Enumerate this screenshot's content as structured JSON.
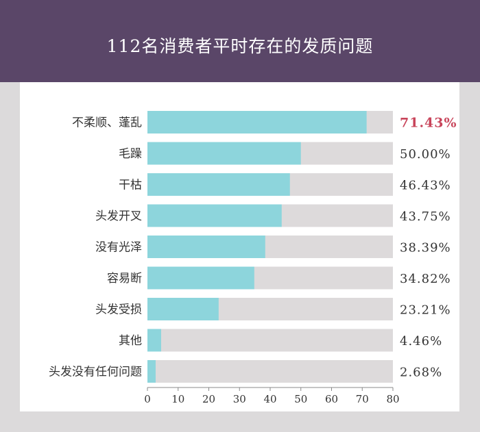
{
  "title": "112名消费者平时存在的发质问题",
  "chart_data": {
    "type": "bar",
    "orientation": "horizontal",
    "title": "112名消费者平时存在的发质问题",
    "categories": [
      "不柔顺、蓬乱",
      "毛躁",
      "干枯",
      "头发开叉",
      "没有光泽",
      "容易断",
      "头发受损",
      "其他",
      "头发没有任何问题"
    ],
    "values": [
      71.43,
      50.0,
      46.43,
      43.75,
      38.39,
      34.82,
      23.21,
      4.46,
      2.68
    ],
    "value_labels": [
      "71.43%",
      "50.00%",
      "46.43%",
      "43.75%",
      "38.39%",
      "34.82%",
      "23.21%",
      "4.46%",
      "2.68%"
    ],
    "highlight_index": 0,
    "xlim": [
      0,
      80
    ],
    "xticks": [
      "0",
      "10",
      "20",
      "30",
      "40",
      "50",
      "60",
      "70",
      "80"
    ],
    "colors": {
      "bar": "#8dd5dc",
      "track": "#dddadb",
      "highlight_text": "#c8445a",
      "text": "#333333",
      "axis": "#888888"
    },
    "grid": false
  }
}
